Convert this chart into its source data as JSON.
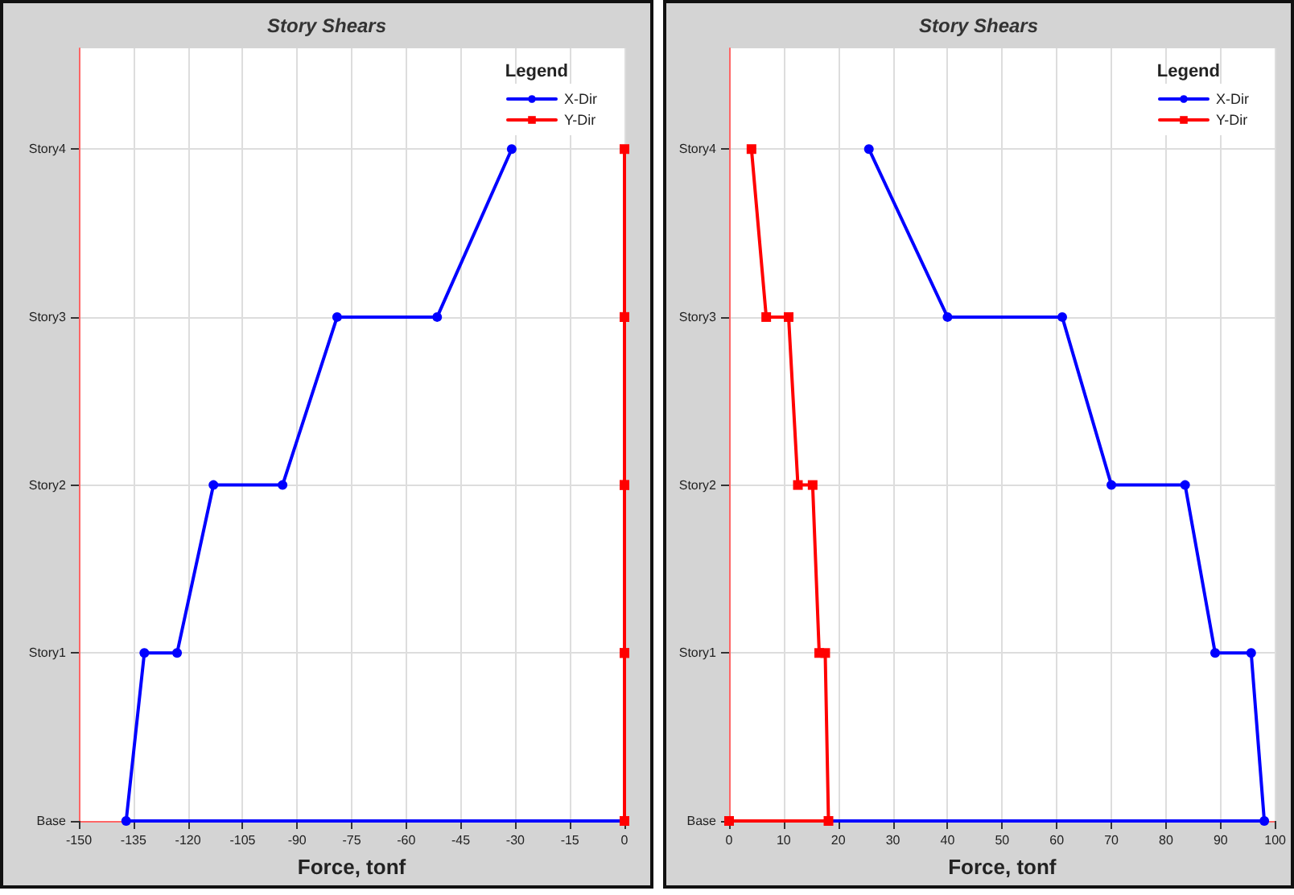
{
  "chart_data": [
    {
      "type": "line",
      "title": "Story Shears",
      "xlabel": "Force, tonf",
      "legend_title": "Legend",
      "legend": "top right",
      "grid": true,
      "line_style": "solid",
      "orientation": "horizontal",
      "categories": [
        "Story4",
        "Story3",
        "Story2",
        "Story1",
        "Base"
      ],
      "xlim": [
        -150,
        0
      ],
      "xticks": [
        -150,
        -135,
        -120,
        -105,
        -90,
        -75,
        -60,
        -45,
        -30,
        -15,
        0
      ],
      "series": [
        {
          "name": "X-Dir",
          "color": "#0000ff",
          "marker": "circle",
          "x": [
            "Story4",
            "Story3",
            "Story3",
            "Story2",
            "Story2",
            "Story1",
            "Story1",
            "Base",
            "Base"
          ],
          "values": [
            -31,
            -51.5,
            -79,
            -94,
            -113,
            -123,
            -132,
            -137,
            0
          ]
        },
        {
          "name": "Y-Dir",
          "color": "#ff0000",
          "marker": "square",
          "x": [
            "Story4",
            "Story3",
            "Story3",
            "Story2",
            "Story2",
            "Story1",
            "Story1",
            "Base",
            "Base"
          ],
          "values": [
            0,
            0,
            0,
            0,
            0,
            0,
            0,
            0,
            0
          ]
        }
      ]
    },
    {
      "type": "line",
      "title": "Story Shears",
      "xlabel": "Force, tonf",
      "legend_title": "Legend",
      "legend": "top right",
      "grid": true,
      "line_style": "solid",
      "orientation": "horizontal",
      "categories": [
        "Story4",
        "Story3",
        "Story2",
        "Story1",
        "Base"
      ],
      "xlim": [
        0,
        100
      ],
      "xticks": [
        0,
        10,
        20,
        30,
        40,
        50,
        60,
        70,
        80,
        90,
        100
      ],
      "series": [
        {
          "name": "X-Dir",
          "color": "#0000ff",
          "marker": "circle",
          "x": [
            "Story4",
            "Story3",
            "Story3",
            "Story2",
            "Story2",
            "Story1",
            "Story1",
            "Base",
            "Base"
          ],
          "values": [
            25.6,
            40,
            61,
            70,
            83.5,
            89,
            95.6,
            98,
            0
          ]
        },
        {
          "name": "Y-Dir",
          "color": "#ff0000",
          "marker": "square",
          "x": [
            "Story4",
            "Story3",
            "Story3",
            "Story2",
            "Story2",
            "Story1",
            "Story1",
            "Base",
            "Base"
          ],
          "values": [
            4.1,
            6.8,
            10.9,
            12.6,
            15.3,
            16.5,
            17.6,
            18.2,
            0
          ]
        }
      ]
    }
  ]
}
